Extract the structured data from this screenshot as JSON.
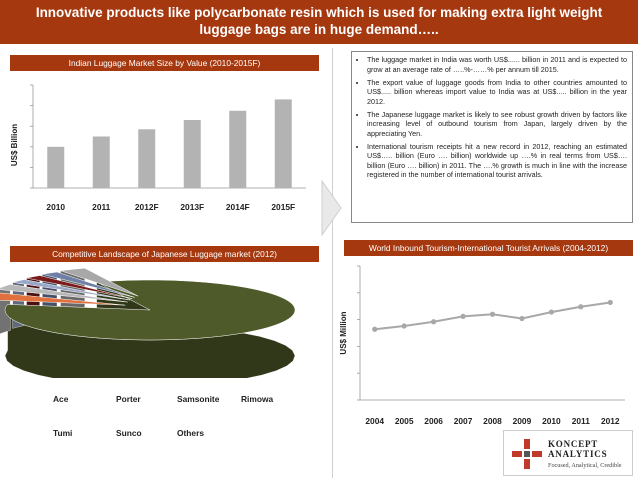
{
  "header": {
    "title": "Innovative products like polycarbonate resin which is used for making extra light weight luggage bags are in huge demand….."
  },
  "bar_panel": {
    "title": "Indian Luggage Market Size by Value (2010-2015F)",
    "ylabel": "US$ Billion"
  },
  "bullets": [
    "The luggage market in India was worth US$...... billion in 2011 and is expected to grow at an average rate of …..%-……% per annum till 2015.",
    "The export value of luggage goods from India to other countries amounted to US$..... billion whereas import value to India was at US$..... billion in the year 2012.",
    "The Japanese luggage market is likely to see robust growth driven by factors like increasing level of outbound tourism from Japan, largely driven by the appreciating Yen.",
    "International tourism receipts hit a new record in 2012, reaching an estimated US$….. billion (Euro …. billion) worldwide up ….% in real terms from US$…. billion (Euro …. billion) in 2011. The ….% growth is much in line with the increase registered in the number of international tourist arrivals."
  ],
  "pie_panel": {
    "title": "Competitive Landscape of Japanese Luggage market (2012)"
  },
  "legend": {
    "row1": [
      "Ace",
      "Porter",
      "Samsonite",
      "Rimowa"
    ],
    "row2": [
      "Tumi",
      "Sunco",
      "Others"
    ]
  },
  "line_panel": {
    "title": "World Inbound Tourism-International Tourist Arrivals (2004-2012)",
    "ylabel": "US$ Million"
  },
  "logo": {
    "name_line1": "KONCEPT",
    "name_line2": "ANALYTICS",
    "tagline": "Focused, Analytical, Credible"
  },
  "colors": {
    "brand": "#a6380f",
    "bar": "#b3b3b3",
    "line": "#a8a8a8",
    "pie_main": "#4f5a2a"
  },
  "chart_data": [
    {
      "type": "bar",
      "title": "Indian Luggage Market Size by Value (2010-2015F)",
      "ylabel": "US$ Billion",
      "categories": [
        "2010",
        "2011",
        "2012F",
        "2013F",
        "2014F",
        "2015F"
      ],
      "values": [
        2.0,
        2.5,
        2.85,
        3.3,
        3.75,
        4.3
      ],
      "ylim": [
        0,
        5
      ],
      "grid": false
    },
    {
      "type": "pie",
      "title": "Competitive Landscape of Japanese Luggage market (2012)",
      "labels": [
        "Ace",
        "Porter",
        "Samsonite",
        "Rimowa",
        "Tumi",
        "Sunco",
        "Others"
      ],
      "values": [
        84,
        4,
        3,
        2,
        2,
        2,
        3
      ],
      "colors": [
        "#4f5a2a",
        "#e0703d",
        "#b8b8b8",
        "#9aa8c8",
        "#7a1a1a",
        "#6f7fa6",
        "#a8a8a8"
      ]
    },
    {
      "type": "line",
      "title": "World Inbound Tourism-International Tourist Arrivals (2004-2012)",
      "ylabel": "US$ Million",
      "x": [
        "2004",
        "2005",
        "2006",
        "2007",
        "2008",
        "2009",
        "2010",
        "2011",
        "2012"
      ],
      "values": [
        66,
        69,
        73,
        78,
        80,
        76,
        82,
        87,
        91
      ],
      "ylim": [
        0,
        125
      ],
      "grid": false
    }
  ]
}
